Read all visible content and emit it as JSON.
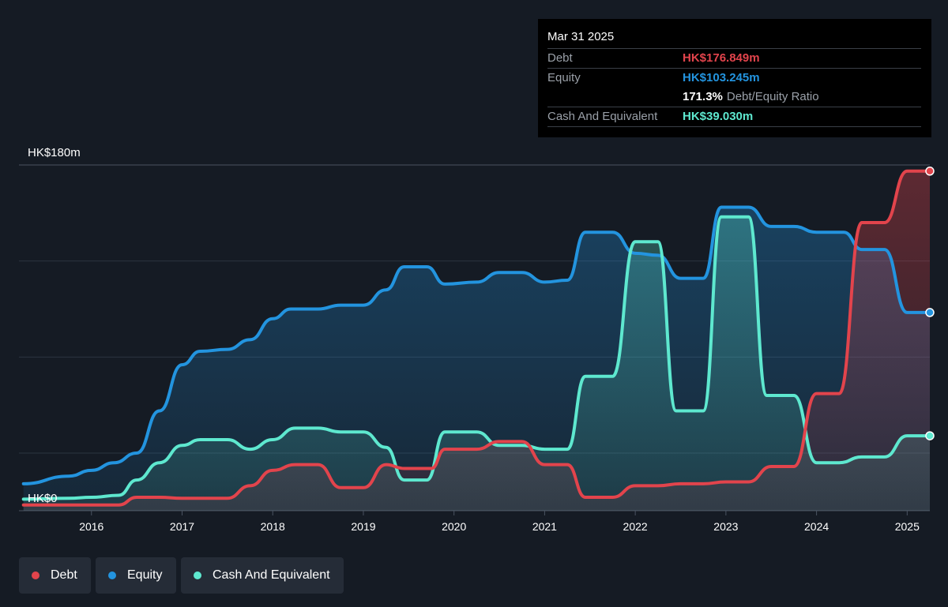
{
  "tooltip": {
    "date": "Mar 31 2025",
    "debt_label": "Debt",
    "debt_value": "HK$176.849m",
    "equity_label": "Equity",
    "equity_value": "HK$103.245m",
    "ratio_pct": "171.3%",
    "ratio_label": "Debt/Equity Ratio",
    "cash_label": "Cash And Equivalent",
    "cash_value": "HK$39.030m"
  },
  "legend": {
    "debt": "Debt",
    "equity": "Equity",
    "cash": "Cash And Equivalent"
  },
  "colors": {
    "debt": "#e2444c",
    "equity": "#2394df",
    "cash": "#5ee8cf",
    "background": "#151b24"
  },
  "chart_data": {
    "type": "area",
    "y_top_label": "HK$180m",
    "y_bottom_label": "HK$0",
    "x_tick_labels": [
      "2016",
      "2017",
      "2018",
      "2019",
      "2020",
      "2021",
      "2022",
      "2023",
      "2024",
      "2025"
    ],
    "x_ticks": [
      2016,
      2017,
      2018,
      2019,
      2020,
      2021,
      2022,
      2023,
      2024,
      2025
    ],
    "xlim": [
      2015.2,
      2025.25
    ],
    "ylim": [
      0,
      180
    ],
    "grid": true,
    "series": [
      {
        "name": "Equity",
        "points": [
          [
            2015.25,
            14
          ],
          [
            2015.75,
            18
          ],
          [
            2016.0,
            21
          ],
          [
            2016.25,
            25
          ],
          [
            2016.5,
            30
          ],
          [
            2016.75,
            52
          ],
          [
            2017.0,
            76
          ],
          [
            2017.2,
            83
          ],
          [
            2017.5,
            84
          ],
          [
            2017.75,
            89
          ],
          [
            2018.0,
            100
          ],
          [
            2018.2,
            105
          ],
          [
            2018.5,
            105
          ],
          [
            2018.75,
            107
          ],
          [
            2019.0,
            107
          ],
          [
            2019.25,
            115
          ],
          [
            2019.45,
            127
          ],
          [
            2019.7,
            127
          ],
          [
            2019.9,
            118
          ],
          [
            2020.25,
            119
          ],
          [
            2020.5,
            124
          ],
          [
            2020.75,
            124
          ],
          [
            2021.0,
            119
          ],
          [
            2021.25,
            120
          ],
          [
            2021.45,
            145
          ],
          [
            2021.75,
            145
          ],
          [
            2022.0,
            134
          ],
          [
            2022.25,
            133
          ],
          [
            2022.5,
            121
          ],
          [
            2022.75,
            121
          ],
          [
            2022.95,
            158
          ],
          [
            2023.25,
            158
          ],
          [
            2023.5,
            148
          ],
          [
            2023.75,
            148
          ],
          [
            2024.0,
            145
          ],
          [
            2024.3,
            145
          ],
          [
            2024.5,
            136
          ],
          [
            2024.75,
            136
          ],
          [
            2025.0,
            103.2
          ],
          [
            2025.25,
            103.2
          ]
        ]
      },
      {
        "name": "Cash And Equivalent",
        "points": [
          [
            2015.25,
            6
          ],
          [
            2015.75,
            6.5
          ],
          [
            2016.0,
            7
          ],
          [
            2016.3,
            8
          ],
          [
            2016.5,
            16
          ],
          [
            2016.75,
            25
          ],
          [
            2017.0,
            34
          ],
          [
            2017.2,
            37
          ],
          [
            2017.5,
            37
          ],
          [
            2017.75,
            32
          ],
          [
            2018.0,
            37
          ],
          [
            2018.25,
            43
          ],
          [
            2018.5,
            43
          ],
          [
            2018.75,
            41
          ],
          [
            2019.0,
            41
          ],
          [
            2019.25,
            33
          ],
          [
            2019.45,
            16
          ],
          [
            2019.7,
            16
          ],
          [
            2019.9,
            41
          ],
          [
            2020.25,
            41
          ],
          [
            2020.5,
            34
          ],
          [
            2020.75,
            34
          ],
          [
            2021.0,
            32
          ],
          [
            2021.25,
            32
          ],
          [
            2021.45,
            70
          ],
          [
            2021.75,
            70
          ],
          [
            2022.0,
            140
          ],
          [
            2022.25,
            140
          ],
          [
            2022.45,
            52
          ],
          [
            2022.75,
            52
          ],
          [
            2022.95,
            153
          ],
          [
            2023.25,
            153
          ],
          [
            2023.45,
            60
          ],
          [
            2023.75,
            60
          ],
          [
            2024.0,
            25
          ],
          [
            2024.25,
            25
          ],
          [
            2024.5,
            28
          ],
          [
            2024.75,
            28
          ],
          [
            2025.0,
            39
          ],
          [
            2025.25,
            39
          ]
        ]
      },
      {
        "name": "Debt",
        "points": [
          [
            2015.25,
            3
          ],
          [
            2015.75,
            3
          ],
          [
            2016.0,
            3
          ],
          [
            2016.3,
            3
          ],
          [
            2016.5,
            7
          ],
          [
            2016.75,
            7
          ],
          [
            2017.0,
            6.5
          ],
          [
            2017.25,
            6.5
          ],
          [
            2017.5,
            6.5
          ],
          [
            2017.75,
            13
          ],
          [
            2018.0,
            21
          ],
          [
            2018.25,
            24
          ],
          [
            2018.5,
            24
          ],
          [
            2018.75,
            12
          ],
          [
            2019.0,
            12
          ],
          [
            2019.25,
            24
          ],
          [
            2019.45,
            22
          ],
          [
            2019.75,
            22
          ],
          [
            2019.9,
            32
          ],
          [
            2020.25,
            32
          ],
          [
            2020.5,
            36
          ],
          [
            2020.75,
            36
          ],
          [
            2021.0,
            24
          ],
          [
            2021.25,
            24
          ],
          [
            2021.45,
            7
          ],
          [
            2021.75,
            7
          ],
          [
            2022.0,
            13
          ],
          [
            2022.25,
            13
          ],
          [
            2022.5,
            14
          ],
          [
            2022.75,
            14
          ],
          [
            2023.0,
            15
          ],
          [
            2023.25,
            15
          ],
          [
            2023.5,
            23
          ],
          [
            2023.75,
            23
          ],
          [
            2024.0,
            61
          ],
          [
            2024.25,
            61
          ],
          [
            2024.5,
            150
          ],
          [
            2024.75,
            150
          ],
          [
            2025.0,
            176.8
          ],
          [
            2025.25,
            176.8
          ]
        ]
      }
    ]
  }
}
